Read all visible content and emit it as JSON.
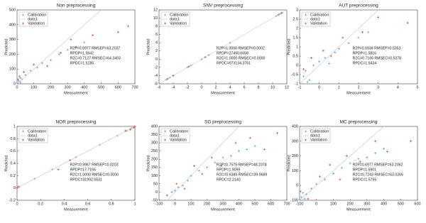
{
  "chart_data": [
    {
      "type": "scatter",
      "title": "Non preprocessing",
      "xlabel": "Measurement",
      "ylabel": "Predicted",
      "xlim": [
        0,
        700
      ],
      "ylim": [
        0,
        500
      ],
      "xticks": [
        0,
        100,
        200,
        300,
        400,
        500,
        600,
        700
      ],
      "yticks": [
        0,
        100,
        200,
        300,
        400,
        500
      ],
      "legend": "upper left",
      "series": [
        {
          "name": "Calibration",
          "color": "#5dade2",
          "x": [
            10,
            20,
            30,
            50,
            80,
            120,
            150,
            200,
            250,
            300,
            350,
            400,
            20,
            15
          ],
          "values": [
            20,
            40,
            30,
            60,
            90,
            110,
            140,
            160,
            200,
            230,
            250,
            280,
            10,
            50
          ]
        },
        {
          "name": "data1",
          "color": "#c8c8c8",
          "x": [
            0,
            500
          ],
          "values": [
            0,
            500
          ]
        },
        {
          "name": "Validation",
          "color": "#e8552a",
          "x": [
            5,
            40,
            100,
            180,
            260,
            320,
            450,
            600,
            660
          ],
          "values": [
            30,
            80,
            130,
            120,
            210,
            300,
            330,
            350,
            390
          ]
        }
      ],
      "annotations": [
        "R2P=0.6977   RMSEP=63.2037",
        "RPDP=1.5642",
        "R2C=0.7127   RMSEC=64.3403",
        "RPDC=1.5185"
      ]
    },
    {
      "type": "scatter",
      "title": "SNV preprocessing",
      "xlabel": "Measurement",
      "ylabel": "Predicted",
      "xlim": [
        -6,
        12
      ],
      "ylim": [
        -6,
        12
      ],
      "xticks": [
        -6,
        -4,
        -2,
        0,
        2,
        4,
        6,
        8,
        10,
        12
      ],
      "yticks": [
        -6,
        -4,
        -2,
        0,
        2,
        4,
        6,
        8,
        10,
        12
      ],
      "legend": "upper left",
      "series": [
        {
          "name": "Calibration",
          "color": "#5dade2",
          "x": [
            -5,
            -4.5,
            -4,
            -2,
            -1.5,
            0,
            1,
            4,
            10.5,
            11,
            11.2
          ],
          "values": [
            -5,
            -4.5,
            -4,
            -2,
            -1.5,
            0,
            1,
            4,
            10.5,
            11,
            11.2
          ]
        },
        {
          "name": "data1",
          "color": "#c8c8c8",
          "x": [
            -6,
            12
          ],
          "values": [
            -6,
            12
          ]
        },
        {
          "name": "Validation",
          "color": "#e8552a",
          "x": [
            -4.8,
            -4,
            -1.8,
            0.5,
            10.8,
            11.3
          ],
          "values": [
            -4.8,
            -4,
            -1.8,
            0.5,
            10.8,
            11.3
          ]
        }
      ],
      "annotations": [
        "R2P=1.0000   RMSEP=0.0002",
        "RPDP=27490.6658",
        "R2C=1.0000   RMSEC=0.0000",
        "RPDC=973134.3761"
      ]
    },
    {
      "type": "scatter",
      "title": "AUT preprocessing",
      "xlabel": "Measurement",
      "ylabel": "Predicted",
      "xlim": [
        -1,
        5
      ],
      "ylim": [
        -1,
        3
      ],
      "xticks": [
        -1,
        0,
        1,
        2,
        3,
        4,
        5
      ],
      "yticks": [
        -1,
        -0.5,
        0,
        0.5,
        1,
        1.5,
        2,
        2.5,
        3
      ],
      "legend": "upper left",
      "series": [
        {
          "name": "Calibration",
          "color": "#5dade2",
          "x": [
            -0.8,
            -0.7,
            -0.5,
            -0.3,
            0,
            0.3,
            0.5,
            0.8,
            1,
            1.5,
            2,
            2.5,
            -0.6
          ],
          "values": [
            -0.6,
            -0.3,
            -0.8,
            0,
            0.2,
            0.4,
            0.1,
            0.7,
            0.9,
            1.2,
            1.5,
            1.8,
            -0.9
          ]
        },
        {
          "name": "data1",
          "color": "#c8c8c8",
          "x": [
            -1,
            3
          ],
          "values": [
            -1,
            3
          ]
        },
        {
          "name": "Validation",
          "color": "#e8552a",
          "x": [
            -0.8,
            -0.4,
            0.2,
            0.6,
            1.2,
            2.2,
            3,
            4.5
          ],
          "values": [
            -0.2,
            0.4,
            0.8,
            0.5,
            1.5,
            1.8,
            2.6,
            2.3
          ]
        }
      ],
      "annotations": [
        "R2P=0.6938   RMSEP=0.5353",
        "RPDP=1.5816",
        "R2C=0.7166   RMSEC=0.5378",
        "RPDC=1.5434"
      ]
    },
    {
      "type": "scatter",
      "title": "NOR preprocessing",
      "xlabel": "Measurement",
      "ylabel": "Predicted",
      "xlim": [
        0,
        1
      ],
      "ylim": [
        -0.2,
        1
      ],
      "xticks": [
        0,
        0.2,
        0.4,
        0.6,
        0.8,
        1
      ],
      "yticks": [
        -0.2,
        0,
        0.2,
        0.4,
        0.6,
        0.8,
        1
      ],
      "legend": "upper left",
      "series": [
        {
          "name": "Calibration",
          "color": "#5dade2",
          "x": [
            0,
            0.02,
            0.15,
            0.3,
            0.5,
            0.7,
            0.85,
            0.93,
            0.97,
            1,
            1
          ],
          "values": [
            0,
            0.02,
            0.15,
            0.3,
            0.5,
            0.7,
            0.85,
            0.93,
            0.97,
            0.99,
            1
          ]
        },
        {
          "name": "data1",
          "color": "#c8c8c8",
          "x": [
            0,
            1
          ],
          "values": [
            0,
            1
          ]
        },
        {
          "name": "Validation",
          "color": "#e8552a",
          "x": [
            0,
            0.01,
            0.35,
            0.45,
            0.92,
            0.96,
            0.99,
            1
          ],
          "values": [
            0,
            0.02,
            0.3,
            0.45,
            0.93,
            0.95,
            0.98,
            1
          ]
        }
      ],
      "annotations": [
        "R2P=0.9967   RMSEP=0.0203",
        "RPDP=17.7166",
        "R2C=1.0000   RMSEC=0.0000",
        "RPDC=31992.5531"
      ]
    },
    {
      "type": "scatter",
      "title": "SG preprocessing",
      "xlabel": "Measurement",
      "ylabel": "Predicted",
      "xlim": [
        -100,
        700
      ],
      "ylim": [
        -50,
        400
      ],
      "xticks": [
        -100,
        0,
        100,
        200,
        300,
        400,
        500,
        600,
        700
      ],
      "yticks": [
        -50,
        0,
        50,
        100,
        150,
        200,
        250,
        300,
        350,
        400
      ],
      "legend": "upper left",
      "series": [
        {
          "name": "Calibration",
          "color": "#5dade2",
          "x": [
            -20,
            0,
            20,
            50,
            80,
            100,
            150,
            200,
            250,
            300,
            350,
            400,
            450,
            500
          ],
          "values": [
            0,
            10,
            30,
            40,
            70,
            100,
            130,
            150,
            180,
            210,
            220,
            250,
            260,
            280
          ]
        },
        {
          "name": "data1",
          "color": "#c8c8c8",
          "x": [
            -50,
            400
          ],
          "values": [
            -50,
            400
          ]
        },
        {
          "name": "Validation",
          "color": "#e8552a",
          "x": [
            -50,
            10,
            60,
            120,
            170,
            230,
            290,
            380,
            470,
            560,
            640
          ],
          "values": [
            -20,
            50,
            20,
            160,
            110,
            210,
            160,
            300,
            330,
            260,
            360
          ]
        }
      ],
      "annotations": [
        "R2P=0.7579   RMSEP=48.2378",
        "RPDP=1.9099",
        "R2C=0.6385   RMSEC=39.9689",
        "RPDC=2.2140"
      ]
    },
    {
      "type": "scatter",
      "title": "MC preprocessing",
      "xlabel": "Measurement",
      "ylabel": "Predicted",
      "xlim": [
        -100,
        600
      ],
      "ylim": [
        -100,
        400
      ],
      "xticks": [
        -100,
        0,
        100,
        200,
        300,
        400,
        500,
        600
      ],
      "yticks": [
        -100,
        0,
        100,
        200,
        300,
        400
      ],
      "legend": "upper left",
      "series": [
        {
          "name": "Calibration",
          "color": "#5dade2",
          "x": [
            -90,
            -80,
            -60,
            -30,
            0,
            50,
            100,
            150,
            200,
            250,
            300,
            350,
            400,
            -70
          ],
          "values": [
            -80,
            -50,
            -60,
            -20,
            10,
            40,
            80,
            120,
            150,
            180,
            190,
            220,
            250,
            -90
          ]
        },
        {
          "name": "data1",
          "color": "#c8c8c8",
          "x": [
            -100,
            400
          ],
          "values": [
            -100,
            400
          ]
        },
        {
          "name": "Validation",
          "color": "#e8552a",
          "x": [
            -95,
            -50,
            20,
            80,
            140,
            180,
            260,
            350,
            420,
            560
          ],
          "values": [
            -40,
            -90,
            60,
            140,
            40,
            200,
            160,
            300,
            230,
            300
          ]
        }
      ],
      "annotations": [
        "R2P=0.6977   RMSEP=63.2062",
        "RPDP=1.5901",
        "R2C=0.7243   RMSEC=63.0265",
        "RPDC=1.5755"
      ]
    }
  ]
}
